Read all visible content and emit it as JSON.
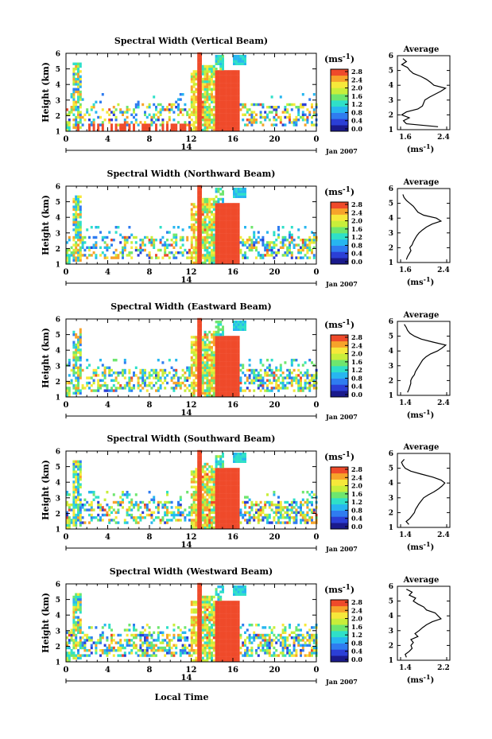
{
  "chart_data": {
    "type": "heatmap",
    "common": {
      "xlabel": "Local Time",
      "ylabel": "Height (km)",
      "date_label": "Jan 2007",
      "day_label": "14",
      "x_ticks": [
        "0",
        "4",
        "8",
        "12",
        "16",
        "20",
        "0"
      ],
      "y_ticks": [
        "1",
        "2",
        "3",
        "4",
        "5",
        "6"
      ],
      "xlim_hours": [
        0,
        24
      ],
      "ylim_km": [
        1,
        6
      ],
      "colorbar_unit": "(ms⁻¹)",
      "colorbar_ticks": [
        "0.0",
        "0.4",
        "0.8",
        "1.2",
        "1.6",
        "2.0",
        "2.4",
        "2.8"
      ],
      "colorbar_range": [
        0,
        2.8
      ],
      "profile_title": "Average",
      "profile_xlabel": "(ms⁻¹)",
      "colorscale": [
        "#1a1a8c",
        "#2b3fd6",
        "#2f7cf0",
        "#27b6f0",
        "#2fe0c8",
        "#6ee66e",
        "#c8ee3a",
        "#f6e83a",
        "#f7a32a",
        "#ef4a2a"
      ]
    },
    "panels": [
      {
        "title": "Spectral Width (Vertical Beam)",
        "profile_xlim": [
          1.6,
          2.4
        ],
        "profile_xticks": [
          "1.6",
          "2.4"
        ],
        "profile": [
          [
            1.2,
            2.25
          ],
          [
            1.4,
            1.7
          ],
          [
            1.6,
            1.65
          ],
          [
            1.8,
            1.75
          ],
          [
            2.0,
            1.62
          ],
          [
            2.2,
            1.7
          ],
          [
            2.4,
            1.9
          ],
          [
            2.6,
            1.98
          ],
          [
            2.8,
            2.0
          ],
          [
            3.0,
            2.02
          ],
          [
            3.2,
            2.1
          ],
          [
            3.4,
            2.2
          ],
          [
            3.6,
            2.3
          ],
          [
            3.8,
            2.38
          ],
          [
            4.0,
            2.18
          ],
          [
            4.2,
            2.12
          ],
          [
            4.4,
            2.05
          ],
          [
            4.6,
            1.95
          ],
          [
            4.8,
            1.82
          ],
          [
            5.0,
            1.76
          ],
          [
            5.2,
            1.72
          ],
          [
            5.4,
            1.62
          ],
          [
            5.6,
            1.7
          ],
          [
            5.8,
            1.64
          ]
        ]
      },
      {
        "title": "Spectral Width (Northward Beam)",
        "profile_xlim": [
          1.6,
          2.4
        ],
        "profile_xticks": [
          "1.6",
          "2.4"
        ],
        "profile": [
          [
            1.2,
            1.7
          ],
          [
            1.4,
            1.72
          ],
          [
            1.6,
            1.75
          ],
          [
            1.8,
            1.78
          ],
          [
            2.0,
            1.76
          ],
          [
            2.2,
            1.8
          ],
          [
            2.4,
            1.82
          ],
          [
            2.6,
            1.85
          ],
          [
            2.8,
            1.88
          ],
          [
            3.0,
            1.92
          ],
          [
            3.2,
            1.98
          ],
          [
            3.4,
            2.05
          ],
          [
            3.6,
            2.15
          ],
          [
            3.8,
            2.3
          ],
          [
            4.0,
            2.22
          ],
          [
            4.2,
            2.0
          ],
          [
            4.4,
            1.9
          ],
          [
            4.6,
            1.86
          ],
          [
            4.8,
            1.82
          ],
          [
            5.0,
            1.76
          ],
          [
            5.2,
            1.7
          ],
          [
            5.4,
            1.66
          ],
          [
            5.6,
            1.64
          ]
        ]
      },
      {
        "title": "Spectral Width (Eastward Beam)",
        "profile_xlim": [
          1.4,
          2.4
        ],
        "profile_xticks": [
          "1.4",
          "2.4"
        ],
        "profile": [
          [
            1.2,
            1.55
          ],
          [
            1.4,
            1.58
          ],
          [
            1.6,
            1.6
          ],
          [
            1.8,
            1.62
          ],
          [
            2.0,
            1.62
          ],
          [
            2.2,
            1.65
          ],
          [
            2.4,
            1.7
          ],
          [
            2.6,
            1.72
          ],
          [
            2.8,
            1.76
          ],
          [
            3.0,
            1.8
          ],
          [
            3.2,
            1.84
          ],
          [
            3.4,
            1.88
          ],
          [
            3.6,
            1.95
          ],
          [
            3.8,
            2.05
          ],
          [
            4.0,
            2.2
          ],
          [
            4.2,
            2.3
          ],
          [
            4.4,
            2.38
          ],
          [
            4.6,
            2.1
          ],
          [
            4.8,
            1.85
          ],
          [
            5.0,
            1.7
          ],
          [
            5.2,
            1.6
          ],
          [
            5.4,
            1.55
          ],
          [
            5.6,
            1.52
          ],
          [
            5.8,
            1.48
          ]
        ]
      },
      {
        "title": "Spectral Width (Southward Beam)",
        "profile_xlim": [
          1.4,
          2.4
        ],
        "profile_xticks": [
          "1.4",
          "2.4"
        ],
        "profile": [
          [
            1.2,
            1.58
          ],
          [
            1.4,
            1.52
          ],
          [
            1.6,
            1.6
          ],
          [
            1.8,
            1.65
          ],
          [
            2.0,
            1.7
          ],
          [
            2.2,
            1.72
          ],
          [
            2.4,
            1.76
          ],
          [
            2.6,
            1.8
          ],
          [
            2.8,
            1.85
          ],
          [
            3.0,
            1.9
          ],
          [
            3.2,
            2.0
          ],
          [
            3.4,
            2.12
          ],
          [
            3.6,
            2.22
          ],
          [
            3.8,
            2.3
          ],
          [
            4.0,
            2.36
          ],
          [
            4.2,
            2.28
          ],
          [
            4.4,
            2.1
          ],
          [
            4.6,
            1.85
          ],
          [
            4.8,
            1.62
          ],
          [
            5.0,
            1.5
          ],
          [
            5.2,
            1.45
          ],
          [
            5.4,
            1.42
          ],
          [
            5.6,
            1.48
          ]
        ]
      },
      {
        "title": "Spectral Width (Westward Beam)",
        "profile_xlim": [
          1.4,
          2.2
        ],
        "profile_xticks": [
          "1.4",
          "2.2"
        ],
        "profile": [
          [
            1.2,
            1.5
          ],
          [
            1.4,
            1.48
          ],
          [
            1.6,
            1.55
          ],
          [
            1.8,
            1.6
          ],
          [
            2.0,
            1.58
          ],
          [
            2.2,
            1.62
          ],
          [
            2.4,
            1.58
          ],
          [
            2.6,
            1.7
          ],
          [
            2.8,
            1.65
          ],
          [
            3.0,
            1.72
          ],
          [
            3.2,
            1.78
          ],
          [
            3.4,
            1.85
          ],
          [
            3.6,
            1.95
          ],
          [
            3.8,
            2.1
          ],
          [
            4.0,
            2.05
          ],
          [
            4.2,
            2.0
          ],
          [
            4.4,
            1.85
          ],
          [
            4.6,
            1.8
          ],
          [
            4.8,
            1.7
          ],
          [
            5.0,
            1.62
          ],
          [
            5.2,
            1.66
          ],
          [
            5.4,
            1.55
          ],
          [
            5.6,
            1.6
          ],
          [
            5.8,
            1.5
          ]
        ]
      }
    ]
  }
}
